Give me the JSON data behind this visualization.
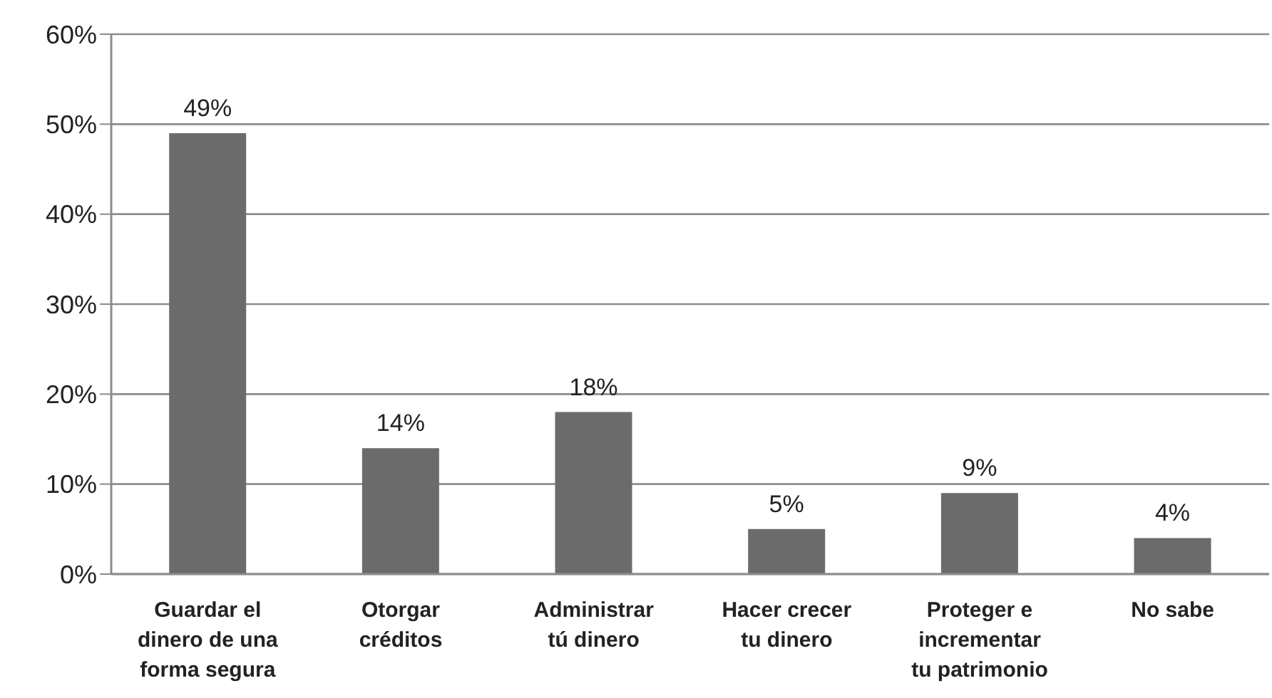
{
  "chart_data": {
    "type": "bar",
    "categories": [
      "Guardar el dinero de una forma segura",
      "Otorgar créditos",
      "Administrar tú dinero",
      "Hacer crecer tu dinero",
      "Proteger e incrementar tu patrimonio",
      "No sabe"
    ],
    "values": [
      49,
      14,
      18,
      5,
      9,
      4
    ],
    "color": "#6b6b6b",
    "value_labels": [
      "49%",
      "14%",
      "18%",
      "5%",
      "9%",
      "4%"
    ],
    "ylim": [
      0,
      60
    ],
    "yticks": [
      {
        "value": 0,
        "label": "0%"
      },
      {
        "value": 10,
        "label": "10%"
      },
      {
        "value": 20,
        "label": "20%"
      },
      {
        "value": 30,
        "label": "30%"
      },
      {
        "value": 40,
        "label": "40%"
      },
      {
        "value": 50,
        "label": "50%"
      },
      {
        "value": 60,
        "label": "60%"
      }
    ],
    "grid": "y"
  }
}
